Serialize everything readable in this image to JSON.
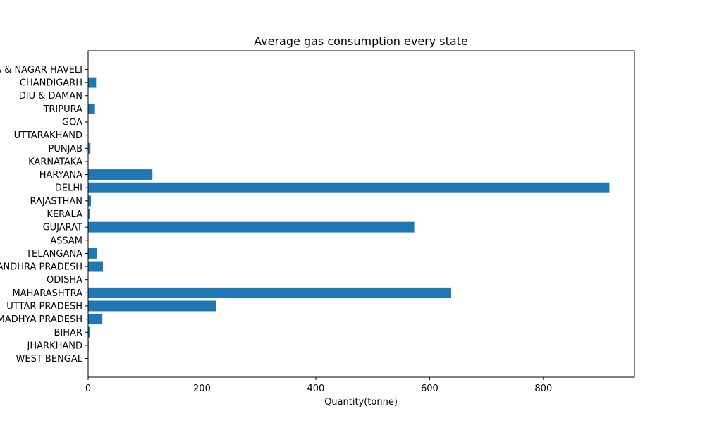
{
  "chart_data": {
    "type": "bar",
    "orientation": "horizontal",
    "title": "Average gas consumption every state",
    "xlabel": "Quantity(tonne)",
    "ylabel": "",
    "xlim": [
      0,
      960
    ],
    "xticks": [
      0,
      200,
      400,
      600,
      800
    ],
    "grid": false,
    "bar_color": "#1f77b4",
    "categories": [
      "WEST BENGAL",
      "JHARKHAND",
      "BIHAR",
      "MADHYA PRADESH",
      "UTTAR PRADESH",
      "MAHARASHTRA",
      "ODISHA",
      "ANDHRA PRADESH",
      "TELANGANA",
      "ASSAM",
      "GUJARAT",
      "KERALA",
      "RAJASTHAN",
      "DELHI",
      "HARYANA",
      "KARNATAKA",
      "PUNJAB",
      "UTTARAKHAND",
      "GOA",
      "TRIPURA",
      "DIU & DAMAN",
      "CHANDIGARH",
      "DADRA & NAGAR HAVELI"
    ],
    "values": [
      0.5,
      1,
      3,
      25,
      225,
      638,
      0.5,
      26,
      15,
      0.5,
      573,
      3,
      5,
      916,
      113,
      0.5,
      4,
      0.5,
      0.5,
      12,
      0.5,
      14,
      0.5
    ]
  }
}
